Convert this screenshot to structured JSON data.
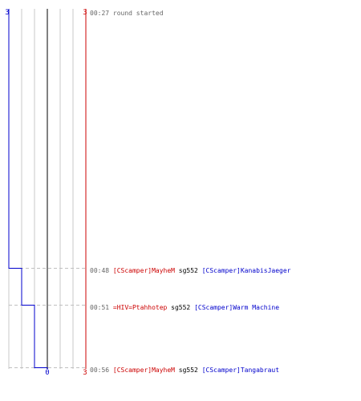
{
  "colors": {
    "blue": "#0000cc",
    "red": "#cc0000",
    "grid": "#c8c8c8",
    "center": "#808080",
    "dash": "#c0c0c0",
    "time": "#666666",
    "text": "#000000"
  },
  "scale": {
    "left_label": "3",
    "right_top_label": "3",
    "right_bottom_label": "3",
    "center_label": "0",
    "ticks": [
      -3,
      -2,
      -1,
      0,
      1,
      2,
      3
    ]
  },
  "score_steps": [
    {
      "time": "00:27",
      "value": -3
    },
    {
      "time": "00:48",
      "value": -2
    },
    {
      "time": "00:51",
      "value": -1
    },
    {
      "time": "00:56",
      "value": 0
    }
  ],
  "events": [
    {
      "time": "00:27",
      "text": "round started"
    },
    {
      "time": "00:48",
      "killer": "[CScamper]MayheM",
      "weapon": "sg552",
      "victim": "[CScamper]KanabisJaeger"
    },
    {
      "time": "00:51",
      "killer": "=HIV=Ptahhotep",
      "weapon": "sg552",
      "victim": "[CScamper]Warm Machine"
    },
    {
      "time": "00:56",
      "killer": "[CScamper]MayheM",
      "weapon": "sg552",
      "victim": "[CScamper]Tangabraut"
    }
  ]
}
